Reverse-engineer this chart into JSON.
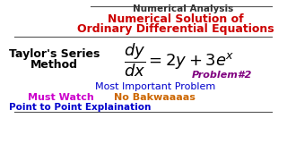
{
  "bg_color": "#ffffff",
  "top_line_color": "#555555",
  "title1": "Numerical Analysis",
  "title1_color": "#333333",
  "title2": "Numerical Solution of",
  "title3": "Ordinary Differential Equations",
  "title23_color": "#cc0000",
  "left_line1": "Taylor's Series",
  "left_line2": "Method",
  "left_color": "#000000",
  "eq_color": "#000000",
  "problem": "Problem#2",
  "problem_color": "#800080",
  "most_important": "Most Important Problem",
  "most_important_color": "#0000cc",
  "must_watch": "Must Watch",
  "must_watch_color": "#cc00cc",
  "no_bakwaaaas": "No Bakwaaaas",
  "no_bakwaaaas_color": "#cc6600",
  "point_to_point": "Point to Point Explaination",
  "point_to_point_color": "#0000cc"
}
